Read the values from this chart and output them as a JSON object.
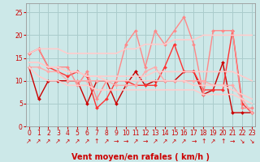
{
  "title": "",
  "xlabel": "Vent moyen/en rafales ( km/h )",
  "bg_color": "#cce8e8",
  "grid_color": "#aacccc",
  "x_ticks": [
    0,
    1,
    2,
    3,
    4,
    5,
    6,
    7,
    8,
    9,
    10,
    11,
    12,
    13,
    14,
    15,
    16,
    17,
    18,
    19,
    20,
    21,
    22,
    23
  ],
  "y_ticks": [
    0,
    5,
    10,
    15,
    20,
    25
  ],
  "ylim": [
    0,
    27
  ],
  "xlim": [
    -0.3,
    23.3
  ],
  "lines": [
    {
      "x": [
        0,
        1,
        2,
        3,
        4,
        5,
        6,
        7,
        8,
        9,
        10,
        11,
        12,
        13,
        14,
        15,
        16,
        17,
        18,
        19,
        20,
        21,
        22,
        23
      ],
      "y": [
        13,
        6,
        10,
        10,
        10,
        10,
        5,
        10,
        10,
        5,
        9,
        12,
        9,
        10,
        10,
        10,
        12,
        12,
        7,
        8,
        14,
        3,
        3,
        3
      ],
      "color": "#cc0000",
      "lw": 1.0,
      "marker": "D",
      "ms": 2.0
    },
    {
      "x": [
        0,
        1,
        2,
        3,
        4,
        5,
        6,
        7,
        8,
        9,
        10,
        11,
        12,
        13,
        14,
        15,
        16,
        17,
        18,
        19,
        20,
        21,
        22,
        23
      ],
      "y": [
        16,
        17,
        13,
        12,
        11,
        12,
        11,
        4,
        6,
        10,
        10,
        9,
        9,
        9,
        13,
        18,
        12,
        12,
        8,
        8,
        8,
        21,
        5,
        3
      ],
      "color": "#ff3333",
      "lw": 1.0,
      "marker": "D",
      "ms": 2.0
    },
    {
      "x": [
        0,
        1,
        2,
        3,
        4,
        5,
        6,
        7,
        8,
        9,
        10,
        11,
        12,
        13,
        14,
        15,
        16,
        17,
        18,
        19,
        20,
        21,
        22,
        23
      ],
      "y": [
        16,
        17,
        13,
        13,
        13,
        9,
        12,
        6,
        10,
        10,
        18,
        21,
        13,
        21,
        18,
        21,
        24,
        18,
        7,
        21,
        21,
        21,
        4,
        4
      ],
      "color": "#ff8888",
      "lw": 1.0,
      "marker": "D",
      "ms": 2.0
    },
    {
      "x": [
        0,
        1,
        2,
        3,
        4,
        5,
        6,
        7,
        8,
        9,
        10,
        11,
        12,
        13,
        14,
        15,
        16,
        17,
        18,
        19,
        20,
        21,
        22,
        23
      ],
      "y": [
        13,
        13,
        12,
        12,
        10,
        10,
        10,
        10,
        10,
        9,
        9,
        9,
        12,
        13,
        10,
        10,
        10,
        10,
        10,
        9,
        9,
        9,
        6,
        3
      ],
      "color": "#ffaaaa",
      "lw": 1.0,
      "marker": "D",
      "ms": 2.0
    },
    {
      "x": [
        0,
        1,
        2,
        3,
        4,
        5,
        6,
        7,
        8,
        9,
        10,
        11,
        12,
        13,
        14,
        15,
        16,
        17,
        18,
        19,
        20,
        21,
        22,
        23
      ],
      "y": [
        16,
        17,
        17,
        17,
        16,
        16,
        16,
        16,
        16,
        16,
        17,
        17,
        18,
        18,
        18,
        19,
        19,
        19,
        20,
        20,
        20,
        20,
        20,
        20
      ],
      "color": "#ffcccc",
      "lw": 1.2,
      "marker": null,
      "ms": 0
    },
    {
      "x": [
        0,
        1,
        2,
        3,
        4,
        5,
        6,
        7,
        8,
        9,
        10,
        11,
        12,
        13,
        14,
        15,
        16,
        17,
        18,
        19,
        20,
        21,
        22,
        23
      ],
      "y": [
        14,
        14,
        13,
        13,
        12,
        12,
        11,
        11,
        11,
        11,
        11,
        11,
        11,
        12,
        12,
        12,
        12,
        12,
        12,
        12,
        12,
        12,
        11,
        10
      ],
      "color": "#ffcccc",
      "lw": 1.2,
      "marker": null,
      "ms": 0
    },
    {
      "x": [
        0,
        1,
        2,
        3,
        4,
        5,
        6,
        7,
        8,
        9,
        10,
        11,
        12,
        13,
        14,
        15,
        16,
        17,
        18,
        19,
        20,
        21,
        22,
        23
      ],
      "y": [
        14,
        14,
        13,
        13,
        12,
        12,
        11,
        11,
        10,
        10,
        10,
        10,
        10,
        10,
        10,
        10,
        10,
        9,
        9,
        9,
        9,
        8,
        7,
        6
      ],
      "color": "#ffcccc",
      "lw": 1.2,
      "marker": null,
      "ms": 0
    },
    {
      "x": [
        0,
        1,
        2,
        3,
        4,
        5,
        6,
        7,
        8,
        9,
        10,
        11,
        12,
        13,
        14,
        15,
        16,
        17,
        18,
        19,
        20,
        21,
        22,
        23
      ],
      "y": [
        13,
        11,
        10,
        10,
        9,
        9,
        9,
        8,
        8,
        8,
        8,
        8,
        8,
        8,
        8,
        8,
        8,
        8,
        7,
        7,
        7,
        7,
        6,
        5
      ],
      "color": "#ffcccc",
      "lw": 1.2,
      "marker": null,
      "ms": 0
    }
  ],
  "wind_arrows": [
    "↗",
    "↗",
    "↗",
    "↗",
    "↗",
    "↗",
    "↗",
    "↑",
    "↗",
    "→",
    "→",
    "↗",
    "→",
    "↗",
    "↗",
    "↗",
    "↗",
    "→",
    "↑",
    "↗",
    "↑",
    "→",
    "↘",
    "↘"
  ],
  "tick_color": "#cc0000",
  "label_color": "#cc0000",
  "axis_color": "#999999",
  "xlabel_fontsize": 7.0,
  "tick_fontsize": 5.5,
  "arrow_fontsize": 5.5
}
